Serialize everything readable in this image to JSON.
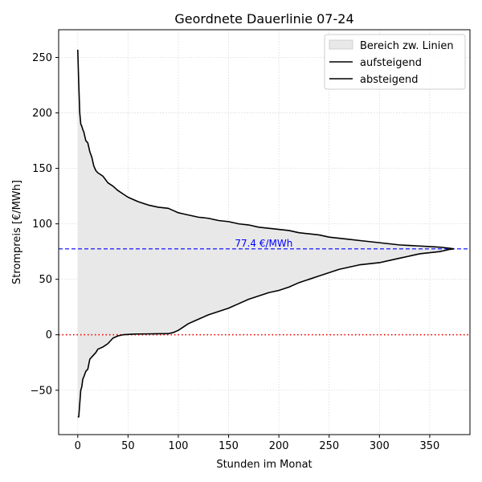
{
  "chart_data": {
    "type": "line",
    "title": "Geordnete Dauerlinie 07-24",
    "xlabel": "Stunden im Monat",
    "ylabel": "Strompreis [€/MWh]",
    "xlim": [
      -19,
      390
    ],
    "ylim": [
      -90,
      275
    ],
    "xticks": [
      0,
      50,
      100,
      150,
      200,
      250,
      300,
      350
    ],
    "yticks": [
      -50,
      0,
      50,
      100,
      150,
      200,
      250
    ],
    "grid": true,
    "legend_position": "top-right",
    "fill_label": "Bereich zw. Linien",
    "series": [
      {
        "name": "aufsteigend",
        "color": "#000000",
        "x": [
          0,
          1,
          2,
          3,
          4,
          5,
          6,
          8,
          10,
          12,
          14,
          16,
          18,
          20,
          25,
          30,
          35,
          40,
          45,
          50,
          55,
          60,
          70,
          80,
          90,
          95,
          100,
          105,
          110,
          115,
          120,
          130,
          140,
          150,
          160,
          170,
          180,
          190,
          200,
          210,
          220,
          230,
          240,
          250,
          260,
          270,
          280,
          290,
          300,
          310,
          320,
          330,
          340,
          350,
          360,
          370,
          374
        ],
        "y": [
          -74,
          -74,
          -62,
          -50,
          -47,
          -40,
          -38,
          -33,
          -31,
          -22,
          -20,
          -18,
          -16,
          -13,
          -11,
          -8,
          -3,
          -1,
          0,
          0.3,
          0.6,
          0.7,
          0.8,
          0.9,
          1,
          2,
          4,
          7,
          10,
          12,
          14,
          18,
          21,
          24,
          28,
          32,
          35,
          38,
          40,
          43,
          47,
          50,
          53,
          56,
          59,
          61,
          63,
          64,
          65,
          67,
          69,
          71,
          73,
          74,
          75,
          77,
          77.4
        ]
      },
      {
        "name": "absteigend",
        "color": "#000000",
        "x": [
          0,
          1,
          2,
          3,
          4,
          5,
          6,
          8,
          10,
          12,
          14,
          16,
          18,
          20,
          25,
          30,
          35,
          40,
          45,
          50,
          55,
          60,
          70,
          80,
          90,
          95,
          100,
          105,
          110,
          115,
          120,
          130,
          140,
          150,
          160,
          170,
          180,
          190,
          200,
          210,
          220,
          230,
          240,
          250,
          260,
          270,
          280,
          290,
          300,
          310,
          320,
          330,
          340,
          350,
          360,
          370,
          374
        ],
        "y": [
          257,
          226,
          200,
          190,
          188,
          185,
          183,
          175,
          173,
          165,
          160,
          152,
          148,
          146,
          143,
          137,
          134,
          130,
          127,
          124,
          122,
          120,
          117,
          115,
          114,
          112,
          110,
          109,
          108,
          107,
          106,
          105,
          103,
          102,
          100,
          99,
          97,
          96,
          95,
          94,
          92,
          91,
          90,
          88,
          87,
          86,
          85,
          84,
          83,
          82,
          81,
          80.5,
          80,
          79.5,
          79,
          78,
          77.4
        ]
      }
    ],
    "hlines": [
      {
        "y": 77.4,
        "color": "#0000ff",
        "style": "dashed",
        "label": "77.4 €/MWh",
        "label_x": 185
      },
      {
        "y": 0,
        "color": "#ff0000",
        "style": "dotted"
      }
    ]
  }
}
